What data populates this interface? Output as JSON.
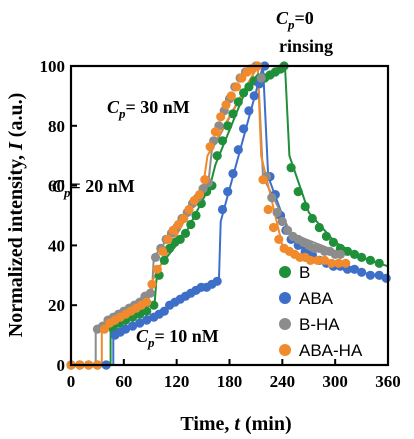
{
  "chart_data": {
    "type": "scatter",
    "xlabel_main": "Time,",
    "xlabel_var": "t",
    "xlabel_unit": "(min)",
    "ylabel_main": "Normalized intensity,",
    "ylabel_var": "I",
    "ylabel_unit": "(a.u.)",
    "xlim": [
      0,
      360
    ],
    "ylim": [
      0,
      100
    ],
    "xticks": [
      0,
      60,
      120,
      180,
      240,
      300,
      360
    ],
    "yticks": [
      0,
      20,
      40,
      60,
      80,
      100
    ],
    "xtick_labels": [
      "0",
      "60",
      "120",
      "180",
      "240",
      "300",
      "360"
    ],
    "ytick_labels": [
      "0",
      "20",
      "40",
      "60",
      "80",
      "100"
    ],
    "legend_position": "bottom-right",
    "annotations": [
      {
        "cp": "C",
        "sub": "p",
        "eq": "= 10 nM"
      },
      {
        "cp": "C",
        "sub": "p",
        "eq": "= 20 nM"
      },
      {
        "cp": "C",
        "sub": "p",
        "eq": "= 30 nM"
      },
      {
        "cp": "C",
        "sub": "p",
        "eq": "=0",
        "line2": "rinsing"
      }
    ],
    "series": [
      {
        "name": "B",
        "color": "#1f8f3a",
        "points": [
          [
            0,
            0
          ],
          [
            10,
            0
          ],
          [
            20,
            0
          ],
          [
            30,
            0
          ],
          [
            40,
            0
          ],
          [
            48,
            12
          ],
          [
            55,
            14
          ],
          [
            62,
            15
          ],
          [
            70,
            16
          ],
          [
            78,
            17
          ],
          [
            86,
            18
          ],
          [
            94,
            20
          ],
          [
            100,
            30
          ],
          [
            106,
            35
          ],
          [
            112,
            39
          ],
          [
            118,
            41
          ],
          [
            124,
            42
          ],
          [
            130,
            44
          ],
          [
            136,
            47
          ],
          [
            142,
            50
          ],
          [
            148,
            54
          ],
          [
            154,
            58
          ],
          [
            160,
            60
          ],
          [
            166,
            70
          ],
          [
            172,
            75
          ],
          [
            178,
            80
          ],
          [
            184,
            84
          ],
          [
            190,
            88
          ],
          [
            196,
            91
          ],
          [
            202,
            93
          ],
          [
            208,
            95
          ],
          [
            214,
            96
          ],
          [
            220,
            96
          ],
          [
            226,
            97
          ],
          [
            232,
            98
          ],
          [
            238,
            99
          ],
          [
            242,
            100
          ],
          [
            250,
            66
          ],
          [
            258,
            58
          ],
          [
            266,
            53
          ],
          [
            274,
            49
          ],
          [
            282,
            46
          ],
          [
            290,
            43
          ],
          [
            298,
            41
          ],
          [
            306,
            39
          ],
          [
            314,
            38
          ],
          [
            322,
            37
          ],
          [
            330,
            36
          ],
          [
            340,
            35
          ],
          [
            350,
            34
          ]
        ],
        "curve": [
          [
            0,
            0
          ],
          [
            45,
            0
          ],
          [
            45,
            12
          ],
          [
            95,
            21
          ],
          [
            98,
            32
          ],
          [
            130,
            44
          ],
          [
            158,
            60
          ],
          [
            164,
            67
          ],
          [
            200,
            93
          ],
          [
            243,
            100
          ],
          [
            248,
            70
          ],
          [
            270,
            51
          ],
          [
            300,
            41
          ],
          [
            330,
            36
          ],
          [
            360,
            33
          ]
        ]
      },
      {
        "name": "ABA",
        "color": "#3d6fc9",
        "points": [
          [
            0,
            0
          ],
          [
            10,
            0
          ],
          [
            20,
            0
          ],
          [
            30,
            0
          ],
          [
            40,
            0
          ],
          [
            50,
            10
          ],
          [
            56,
            11
          ],
          [
            62,
            12
          ],
          [
            70,
            13
          ],
          [
            78,
            14
          ],
          [
            86,
            15
          ],
          [
            94,
            16
          ],
          [
            100,
            17
          ],
          [
            106,
            18
          ],
          [
            112,
            20
          ],
          [
            118,
            21
          ],
          [
            124,
            22
          ],
          [
            130,
            23
          ],
          [
            136,
            24
          ],
          [
            142,
            25
          ],
          [
            148,
            26
          ],
          [
            154,
            26
          ],
          [
            160,
            27
          ],
          [
            166,
            28
          ],
          [
            172,
            52
          ],
          [
            178,
            58
          ],
          [
            184,
            64
          ],
          [
            190,
            72
          ],
          [
            196,
            79
          ],
          [
            202,
            85
          ],
          [
            208,
            90
          ],
          [
            214,
            94
          ],
          [
            220,
            100
          ],
          [
            226,
            63
          ],
          [
            232,
            57
          ],
          [
            238,
            50
          ],
          [
            244,
            45
          ],
          [
            250,
            42
          ],
          [
            258,
            40
          ],
          [
            266,
            38
          ],
          [
            274,
            37
          ],
          [
            282,
            35
          ],
          [
            290,
            34
          ],
          [
            298,
            33
          ],
          [
            306,
            33
          ],
          [
            314,
            32
          ],
          [
            322,
            32
          ],
          [
            330,
            31
          ],
          [
            340,
            30
          ],
          [
            350,
            30
          ],
          [
            358,
            29
          ]
        ],
        "curve": [
          [
            0,
            0
          ],
          [
            48,
            0
          ],
          [
            48,
            10
          ],
          [
            108,
            19
          ],
          [
            110,
            19
          ],
          [
            168,
            28
          ],
          [
            170,
            48
          ],
          [
            218,
            100
          ],
          [
            224,
            63
          ],
          [
            250,
            42
          ],
          [
            290,
            34
          ],
          [
            330,
            31
          ],
          [
            360,
            29
          ]
        ]
      },
      {
        "name": "B-HA",
        "color": "#8c8c8c",
        "points": [
          [
            0,
            0
          ],
          [
            10,
            0
          ],
          [
            20,
            0
          ],
          [
            30,
            12
          ],
          [
            36,
            13
          ],
          [
            42,
            15
          ],
          [
            48,
            16
          ],
          [
            54,
            17
          ],
          [
            60,
            18
          ],
          [
            66,
            19
          ],
          [
            72,
            20
          ],
          [
            78,
            21
          ],
          [
            84,
            23
          ],
          [
            90,
            24
          ],
          [
            96,
            36
          ],
          [
            102,
            39
          ],
          [
            108,
            42
          ],
          [
            114,
            44
          ],
          [
            120,
            46
          ],
          [
            126,
            49
          ],
          [
            132,
            51
          ],
          [
            138,
            54
          ],
          [
            144,
            56
          ],
          [
            150,
            59
          ],
          [
            156,
            61
          ],
          [
            162,
            75
          ],
          [
            168,
            80
          ],
          [
            174,
            85
          ],
          [
            180,
            89
          ],
          [
            186,
            93
          ],
          [
            192,
            96
          ],
          [
            198,
            98
          ],
          [
            204,
            99
          ],
          [
            210,
            100
          ],
          [
            216,
            96
          ],
          [
            222,
            63
          ],
          [
            228,
            56
          ],
          [
            234,
            51
          ],
          [
            240,
            48
          ],
          [
            246,
            45
          ],
          [
            252,
            43
          ],
          [
            258,
            42
          ],
          [
            264,
            41
          ],
          [
            270,
            40
          ],
          [
            276,
            39
          ],
          [
            282,
            39
          ],
          [
            288,
            38
          ],
          [
            294,
            38
          ],
          [
            300,
            37
          ],
          [
            306,
            37
          ]
        ],
        "curve": [
          [
            0,
            0
          ],
          [
            28,
            0
          ],
          [
            28,
            12
          ],
          [
            92,
            25
          ],
          [
            94,
            36
          ],
          [
            156,
            61
          ],
          [
            160,
            72
          ],
          [
            212,
            100
          ],
          [
            218,
            63
          ],
          [
            250,
            44
          ],
          [
            310,
            37
          ]
        ]
      },
      {
        "name": "ABA-HA",
        "color": "#f08a2c",
        "points": [
          [
            0,
            0
          ],
          [
            10,
            0
          ],
          [
            20,
            0
          ],
          [
            30,
            0
          ],
          [
            38,
            12
          ],
          [
            44,
            14
          ],
          [
            50,
            15
          ],
          [
            56,
            16
          ],
          [
            62,
            17
          ],
          [
            68,
            18
          ],
          [
            74,
            19
          ],
          [
            80,
            20
          ],
          [
            86,
            21
          ],
          [
            92,
            27
          ],
          [
            98,
            32
          ],
          [
            104,
            38
          ],
          [
            110,
            42
          ],
          [
            116,
            45
          ],
          [
            122,
            47
          ],
          [
            128,
            49
          ],
          [
            134,
            52
          ],
          [
            140,
            55
          ],
          [
            146,
            57
          ],
          [
            152,
            62
          ],
          [
            158,
            73
          ],
          [
            164,
            78
          ],
          [
            170,
            83
          ],
          [
            176,
            87
          ],
          [
            182,
            90
          ],
          [
            188,
            93
          ],
          [
            194,
            96
          ],
          [
            200,
            98
          ],
          [
            206,
            99
          ],
          [
            212,
            100
          ],
          [
            218,
            62
          ],
          [
            224,
            52
          ],
          [
            230,
            46
          ],
          [
            236,
            42
          ],
          [
            242,
            39
          ],
          [
            248,
            38
          ],
          [
            254,
            37
          ],
          [
            260,
            36
          ],
          [
            266,
            36
          ],
          [
            272,
            35
          ],
          [
            280,
            35
          ],
          [
            288,
            35
          ],
          [
            296,
            34
          ],
          [
            304,
            34
          ],
          [
            312,
            34
          ]
        ],
        "curve": [
          [
            0,
            0
          ],
          [
            35,
            0
          ],
          [
            35,
            12
          ],
          [
            88,
            22
          ],
          [
            92,
            28
          ],
          [
            150,
            60
          ],
          [
            155,
            70
          ],
          [
            212,
            100
          ],
          [
            216,
            70
          ],
          [
            240,
            40
          ],
          [
            270,
            35
          ],
          [
            314,
            34
          ]
        ]
      }
    ]
  }
}
